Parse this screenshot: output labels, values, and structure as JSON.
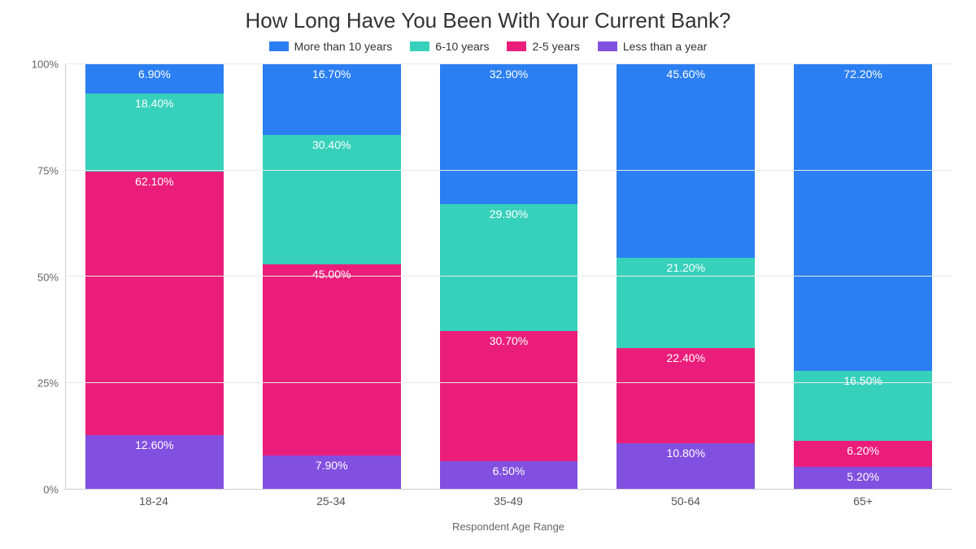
{
  "chart": {
    "type": "stacked-bar-100pct",
    "title": "How Long Have You Been With Your Current Bank?",
    "title_fontsize": 26,
    "title_color": "#333333",
    "background_color": "#ffffff",
    "grid_color": "#e8e8e8",
    "axis_color": "#cccccc",
    "label_fontsize": 14,
    "value_label_color": "#ffffff",
    "xlabel": "Respondent Age Range",
    "categories": [
      "18-24",
      "25-34",
      "35-49",
      "50-64",
      "65+"
    ],
    "series": [
      {
        "key": "more10",
        "name": "More than 10 years",
        "color": "#2b7ff2"
      },
      {
        "key": "six10",
        "name": "6-10 years",
        "color": "#37d1bb"
      },
      {
        "key": "two5",
        "name": "2-5 years",
        "color": "#ea1e7a"
      },
      {
        "key": "lt1",
        "name": "Less than a year",
        "color": "#8250e0"
      }
    ],
    "stack_order": [
      "lt1",
      "two5",
      "six10",
      "more10"
    ],
    "data": {
      "18-24": {
        "more10": 6.9,
        "six10": 18.4,
        "two5": 62.1,
        "lt1": 12.6
      },
      "25-34": {
        "more10": 16.7,
        "six10": 30.4,
        "two5": 45.0,
        "lt1": 7.9
      },
      "35-49": {
        "more10": 32.9,
        "six10": 29.9,
        "two5": 30.7,
        "lt1": 6.5
      },
      "50-64": {
        "more10": 45.6,
        "six10": 21.2,
        "two5": 22.4,
        "lt1": 10.8
      },
      "65+": {
        "more10": 72.2,
        "six10": 16.5,
        "two5": 6.2,
        "lt1": 5.2
      }
    },
    "ylim": [
      0,
      100
    ],
    "ytick_step": 25,
    "yticks": [
      "0%",
      "25%",
      "50%",
      "75%",
      "100%"
    ],
    "bar_width_pct": 78
  }
}
